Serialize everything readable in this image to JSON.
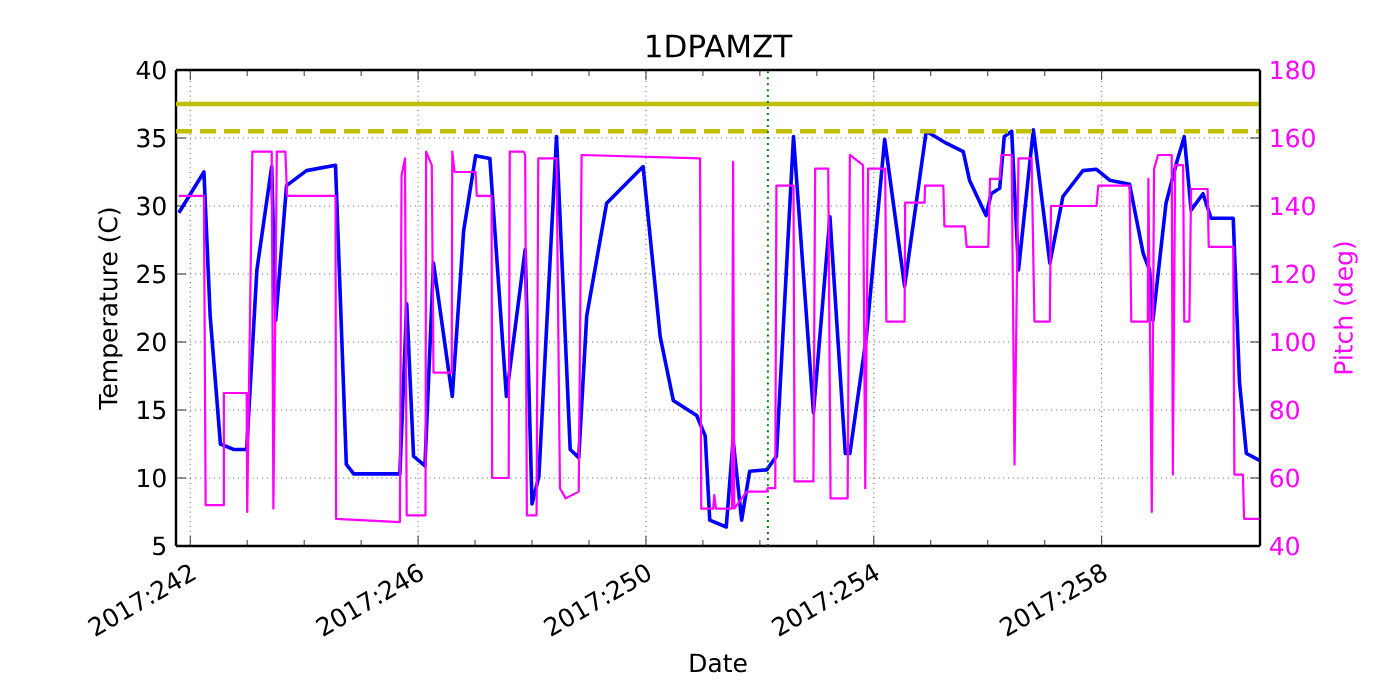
{
  "chart_data": {
    "type": "line",
    "title": "1DPAMZT",
    "xlabel": "Date",
    "ylabel": "Temperature (C)",
    "y2label": "Pitch (deg)",
    "xlim": [
      "2017-08-29T18:00",
      "2017-09-17T18:43"
    ],
    "xticks": [
      {
        "value": "2017-08-30",
        "label": "2017:242"
      },
      {
        "value": "2017-09-03",
        "label": "2017:246"
      },
      {
        "value": "2017-09-07",
        "label": "2017:250"
      },
      {
        "value": "2017-09-11",
        "label": "2017:254"
      },
      {
        "value": "2017-09-15",
        "label": "2017:258"
      }
    ],
    "ylim": [
      5,
      40
    ],
    "yticks": [
      5,
      10,
      15,
      20,
      25,
      30,
      35,
      40
    ],
    "y2lim": [
      40,
      180
    ],
    "y2ticks": [
      40,
      60,
      80,
      100,
      120,
      140,
      160,
      180
    ],
    "grid": true,
    "series": [
      {
        "color": "#0000ff",
        "x": [
          "2017-08-29T19:12",
          "2017-08-30T05:46",
          "2017-08-30T08:24",
          "2017-08-30T12:43",
          "2017-08-30T18:14",
          "2017-08-30T23:46",
          "2017-08-31T04:05",
          "2017-08-31T10:19",
          "2017-08-31T12:00",
          "2017-08-31T16:34",
          "2017-09-01T00:58",
          "2017-09-01T13:12",
          "2017-09-01T17:46",
          "2017-09-01T20:53",
          "2017-09-02T16:19",
          "2017-09-02T19:12",
          "2017-09-02T22:05",
          "2017-09-03T02:53",
          "2017-09-03T06:29",
          "2017-09-03T14:24",
          "2017-09-03T19:12",
          "2017-09-04T00:14",
          "2017-09-04T06:14",
          "2017-09-04T13:12",
          "2017-09-04T21:07",
          "2017-09-05T00:00",
          "2017-09-05T02:53",
          "2017-09-05T10:19",
          "2017-09-05T16:05",
          "2017-09-05T19:41",
          "2017-09-05T23:02",
          "2017-09-06T07:26",
          "2017-09-06T22:48",
          "2017-09-07T06:00",
          "2017-09-07T11:31",
          "2017-09-07T21:22",
          "2017-09-08T00:58",
          "2017-09-08T02:53",
          "2017-09-08T09:50",
          "2017-09-08T12:43",
          "2017-09-08T16:19",
          "2017-09-08T19:41",
          "2017-09-09T02:53",
          "2017-09-09T06:58",
          "2017-09-09T14:10",
          "2017-09-09T22:34",
          "2017-09-10T05:31",
          "2017-09-10T12:00",
          "2017-09-10T13:55",
          "2017-09-10T20:53",
          "2017-09-11T04:34",
          "2017-09-11T12:58",
          "2017-09-11T22:05",
          "2017-09-12T06:43",
          "2017-09-12T13:41",
          "2017-09-12T16:19",
          "2017-09-12T23:17",
          "2017-09-13T01:26",
          "2017-09-13T05:02",
          "2017-09-13T06:58",
          "2017-09-13T10:05",
          "2017-09-13T12:58",
          "2017-09-13T19:12",
          "2017-09-14T02:10",
          "2017-09-14T07:41",
          "2017-09-14T16:05",
          "2017-09-14T21:50",
          "2017-09-15T03:22",
          "2017-09-15T11:46",
          "2017-09-15T17:31",
          "2017-09-15T20:10",
          "2017-09-15T21:36",
          "2017-09-16T03:07",
          "2017-09-16T07:26",
          "2017-09-16T10:48",
          "2017-09-16T13:41",
          "2017-09-16T18:43",
          "2017-09-16T22:05",
          "2017-09-17T07:26",
          "2017-09-17T10:05",
          "2017-09-17T12:58",
          "2017-09-17T18:29"
        ],
        "values": [
          29.5,
          32.5,
          21.9,
          12.5,
          12.1,
          12.1,
          25.3,
          32.9,
          21.6,
          31.5,
          32.6,
          33.0,
          11.0,
          10.3,
          10.3,
          22.8,
          11.6,
          10.9,
          25.8,
          16.0,
          28.2,
          33.7,
          33.5,
          16.0,
          26.8,
          8.1,
          10.1,
          35.1,
          12.1,
          11.5,
          21.9,
          30.2,
          32.9,
          20.4,
          15.7,
          14.6,
          13.1,
          6.9,
          6.4,
          12.8,
          6.9,
          10.5,
          10.6,
          11.6,
          35.1,
          14.8,
          29.2,
          11.8,
          11.8,
          20.4,
          34.9,
          24.1,
          35.5,
          34.6,
          34.0,
          31.9,
          29.3,
          30.9,
          31.3,
          35.1,
          35.5,
          25.3,
          35.6,
          25.8,
          30.7,
          32.6,
          32.7,
          31.9,
          31.6,
          26.5,
          25.3,
          21.6,
          30.2,
          33.1,
          35.1,
          29.7,
          30.9,
          29.1,
          29.1,
          17.0,
          11.8,
          11.3
        ]
      },
      {
        "color": "#ff00ff",
        "axis": "y2",
        "x": [
          "2017-08-29T19:12",
          "2017-08-30T05:46",
          "2017-08-30T06:29",
          "2017-08-30T14:10",
          "2017-08-30T14:10",
          "2017-08-30T23:46",
          "2017-08-31T00:00",
          "2017-08-31T02:10",
          "2017-08-31T10:19",
          "2017-08-31T11:02",
          "2017-08-31T12:29",
          "2017-08-31T16:05",
          "2017-08-31T16:48",
          "2017-09-01T13:12",
          "2017-09-01T13:26",
          "2017-09-02T16:19",
          "2017-09-02T17:02",
          "2017-09-02T18:29",
          "2017-09-02T19:12",
          "2017-09-03T03:07",
          "2017-09-03T03:22",
          "2017-09-03T05:46",
          "2017-09-03T06:29",
          "2017-09-03T14:10",
          "2017-09-03T14:24",
          "2017-09-03T15:22",
          "2017-09-04T00:14",
          "2017-09-04T00:43",
          "2017-09-04T06:58",
          "2017-09-04T07:12",
          "2017-09-04T14:10",
          "2017-09-04T14:38",
          "2017-09-04T20:24",
          "2017-09-04T21:07",
          "2017-09-04T21:50",
          "2017-09-05T01:55",
          "2017-09-05T02:38",
          "2017-09-05T10:19",
          "2017-09-05T11:46",
          "2017-09-05T14:10",
          "2017-09-05T19:41",
          "2017-09-05T20:53",
          "2017-09-07T22:48",
          "2017-09-07T23:17",
          "2017-09-08T04:19",
          "2017-09-08T04:48",
          "2017-09-08T05:31",
          "2017-09-08T12:14",
          "2017-09-08T12:43",
          "2017-09-08T13:12",
          "2017-09-08T18:29",
          "2017-09-09T02:53",
          "2017-09-09T03:22",
          "2017-09-09T06:29",
          "2017-09-09T06:58",
          "2017-09-09T14:10",
          "2017-09-09T14:38",
          "2017-09-09T22:34",
          "2017-09-09T23:17",
          "2017-09-10T04:48",
          "2017-09-10T05:46",
          "2017-09-10T12:58",
          "2017-09-10T13:55",
          "2017-09-10T19:26",
          "2017-09-10T20:24",
          "2017-09-10T21:36",
          "2017-09-11T04:48",
          "2017-09-11T05:17",
          "2017-09-11T12:58",
          "2017-09-11T13:12",
          "2017-09-11T21:22",
          "2017-09-11T21:36",
          "2017-09-12T05:17",
          "2017-09-12T05:46",
          "2017-09-12T14:24",
          "2017-09-12T15:07",
          "2017-09-13T00:14",
          "2017-09-13T00:58",
          "2017-09-13T05:02",
          "2017-09-13T05:46",
          "2017-09-13T10:05",
          "2017-09-13T11:17",
          "2017-09-13T12:58",
          "2017-09-13T18:29",
          "2017-09-13T19:41",
          "2017-09-14T02:10",
          "2017-09-14T02:38",
          "2017-09-14T21:50",
          "2017-09-14T22:34",
          "2017-09-15T11:46",
          "2017-09-15T12:29",
          "2017-09-15T19:26",
          "2017-09-15T19:41",
          "2017-09-15T21:07",
          "2017-09-15T22:05",
          "2017-09-15T23:46",
          "2017-09-16T05:31",
          "2017-09-16T06:00",
          "2017-09-16T06:58",
          "2017-09-16T10:19",
          "2017-09-16T10:48",
          "2017-09-16T12:58",
          "2017-09-16T13:41",
          "2017-09-16T20:38",
          "2017-09-16T21:07",
          "2017-09-17T07:26",
          "2017-09-17T07:55",
          "2017-09-17T11:31",
          "2017-09-17T12:00",
          "2017-09-17T18:29"
        ],
        "values": [
          143,
          143,
          52,
          52,
          85,
          85,
          50,
          156,
          156,
          51,
          156,
          156,
          143,
          143,
          48,
          47,
          149,
          154,
          49,
          49,
          156,
          152,
          91,
          91,
          156,
          150,
          150,
          143,
          143,
          60,
          60,
          156,
          156,
          155,
          49,
          49,
          154,
          154,
          57,
          54,
          56,
          155,
          154,
          51,
          51,
          55,
          51,
          51,
          153,
          51,
          56,
          56,
          57,
          57,
          146,
          146,
          59,
          59,
          151,
          151,
          54,
          54,
          155,
          152,
          57,
          151,
          151,
          106,
          106,
          141,
          141,
          146,
          146,
          134,
          134,
          128,
          128,
          148,
          148,
          155,
          155,
          64,
          154,
          154,
          106,
          106,
          140,
          140,
          146,
          146,
          106,
          106,
          148,
          50,
          151,
          155,
          155,
          61,
          152,
          152,
          106,
          106,
          145,
          145,
          128,
          128,
          61,
          61,
          48,
          48
        ]
      }
    ],
    "ref_lines": [
      {
        "axis": "y",
        "value": 37.5,
        "color": "#bfbf00",
        "line_style": "solid"
      },
      {
        "axis": "y",
        "value": 35.5,
        "color": "#bfbf00",
        "line_style": "dashed"
      },
      {
        "axis": "x",
        "value": "2017-09-09T03:22",
        "color": "#008000",
        "line_style": "dotted"
      }
    ]
  }
}
